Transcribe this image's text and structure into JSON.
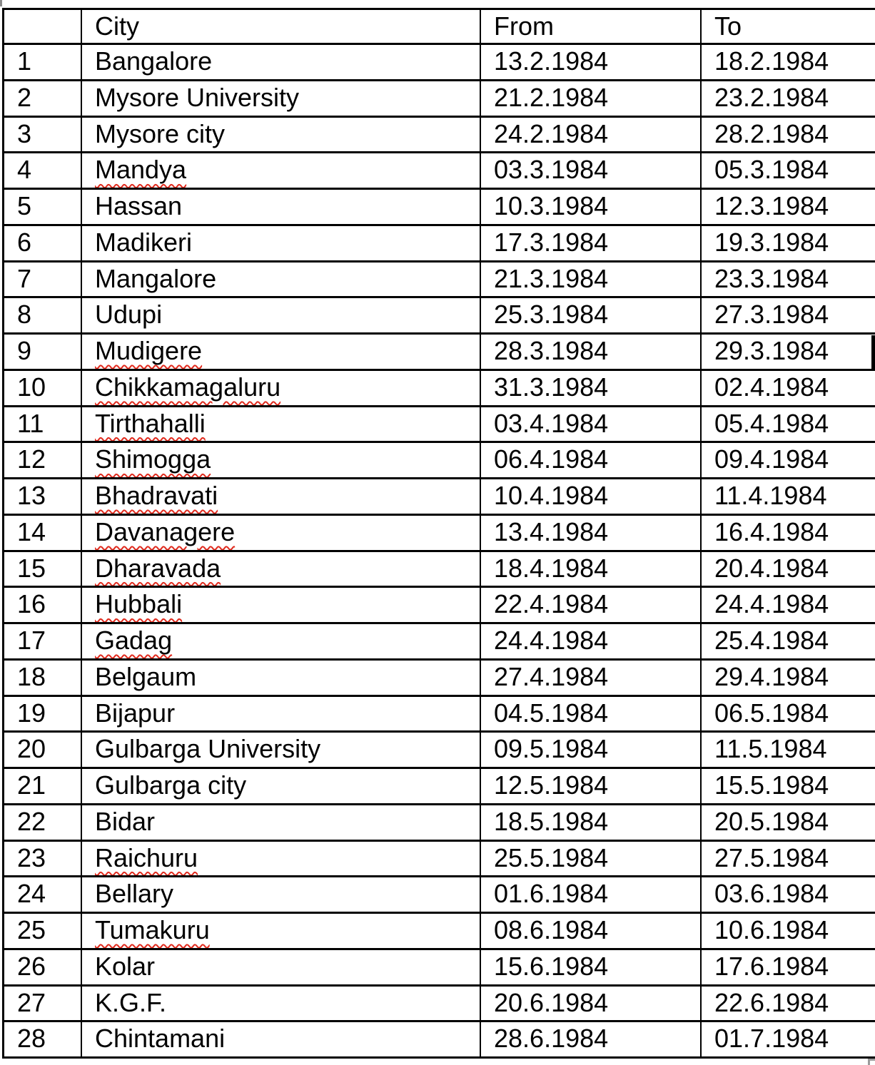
{
  "table": {
    "columns": [
      "",
      "City",
      "From",
      "To"
    ],
    "spell_underline_color": "#e02b1e",
    "rows": [
      {
        "no": "1",
        "city": "Bangalore",
        "from": "13.2.1984",
        "to": "18.2.1984",
        "misspelled": false
      },
      {
        "no": "2",
        "city": "Mysore University",
        "from": "21.2.1984",
        "to": "23.2.1984",
        "misspelled": false
      },
      {
        "no": "3",
        "city": "Mysore city",
        "from": "24.2.1984",
        "to": "28.2.1984",
        "misspelled": false
      },
      {
        "no": "4",
        "city": "Mandya",
        "from": "03.3.1984",
        "to": "05.3.1984",
        "misspelled": true
      },
      {
        "no": "5",
        "city": "Hassan",
        "from": "10.3.1984",
        "to": "12.3.1984",
        "misspelled": false
      },
      {
        "no": "6",
        "city": "Madikeri",
        "from": "17.3.1984",
        "to": "19.3.1984",
        "misspelled": false
      },
      {
        "no": "7",
        "city": "Mangalore",
        "from": "21.3.1984",
        "to": "23.3.1984",
        "misspelled": false
      },
      {
        "no": "8",
        "city": "Udupi",
        "from": "25.3.1984",
        "to": "27.3.1984",
        "misspelled": false
      },
      {
        "no": "9",
        "city": "Mudigere",
        "from": "28.3.1984",
        "to": "29.3.1984",
        "misspelled": true
      },
      {
        "no": "10",
        "city": "Chikkamagaluru",
        "from": "31.3.1984",
        "to": "02.4.1984",
        "misspelled": true
      },
      {
        "no": "11",
        "city": "Tirthahalli",
        "from": "03.4.1984",
        "to": "05.4.1984",
        "misspelled": true
      },
      {
        "no": "12",
        "city": "Shimogga",
        "from": "06.4.1984",
        "to": "09.4.1984",
        "misspelled": true
      },
      {
        "no": "13",
        "city": "Bhadravati",
        "from": "10.4.1984",
        "to": "11.4.1984",
        "misspelled": true
      },
      {
        "no": "14",
        "city": "Davanagere",
        "from": "13.4.1984",
        "to": "16.4.1984",
        "misspelled": true
      },
      {
        "no": "15",
        "city": "Dharavada",
        "from": "18.4.1984",
        "to": "20.4.1984",
        "misspelled": true
      },
      {
        "no": "16",
        "city": "Hubbali",
        "from": "22.4.1984",
        "to": "24.4.1984",
        "misspelled": true
      },
      {
        "no": "17",
        "city": "Gadag",
        "from": "24.4.1984",
        "to": "25.4.1984",
        "misspelled": true
      },
      {
        "no": "18",
        "city": "Belgaum",
        "from": "27.4.1984",
        "to": "29.4.1984",
        "misspelled": false
      },
      {
        "no": "19",
        "city": "Bijapur",
        "from": "04.5.1984",
        "to": "06.5.1984",
        "misspelled": false
      },
      {
        "no": "20",
        "city": "Gulbarga University",
        "from": "09.5.1984",
        "to": "11.5.1984",
        "misspelled": false
      },
      {
        "no": "21",
        "city": "Gulbarga city",
        "from": "12.5.1984",
        "to": "15.5.1984",
        "misspelled": false
      },
      {
        "no": "22",
        "city": "Bidar",
        "from": "18.5.1984",
        "to": "20.5.1984",
        "misspelled": false
      },
      {
        "no": "23",
        "city": "Raichuru",
        "from": "25.5.1984",
        "to": "27.5.1984",
        "misspelled": true
      },
      {
        "no": "24",
        "city": "Bellary",
        "from": "01.6.1984",
        "to": "03.6.1984",
        "misspelled": false
      },
      {
        "no": "25",
        "city": "Tumakuru",
        "from": "08.6.1984",
        "to": "10.6.1984",
        "misspelled": true
      },
      {
        "no": "26",
        "city": "Kolar",
        "from": "15.6.1984",
        "to": "17.6.1984",
        "misspelled": false
      },
      {
        "no": "27",
        "city": "K.G.F.",
        "from": "20.6.1984",
        "to": "22.6.1984",
        "misspelled": false
      },
      {
        "no": "28",
        "city": "Chintamani",
        "from": "28.6.1984",
        "to": "01.7.1984",
        "misspelled": false
      }
    ]
  }
}
